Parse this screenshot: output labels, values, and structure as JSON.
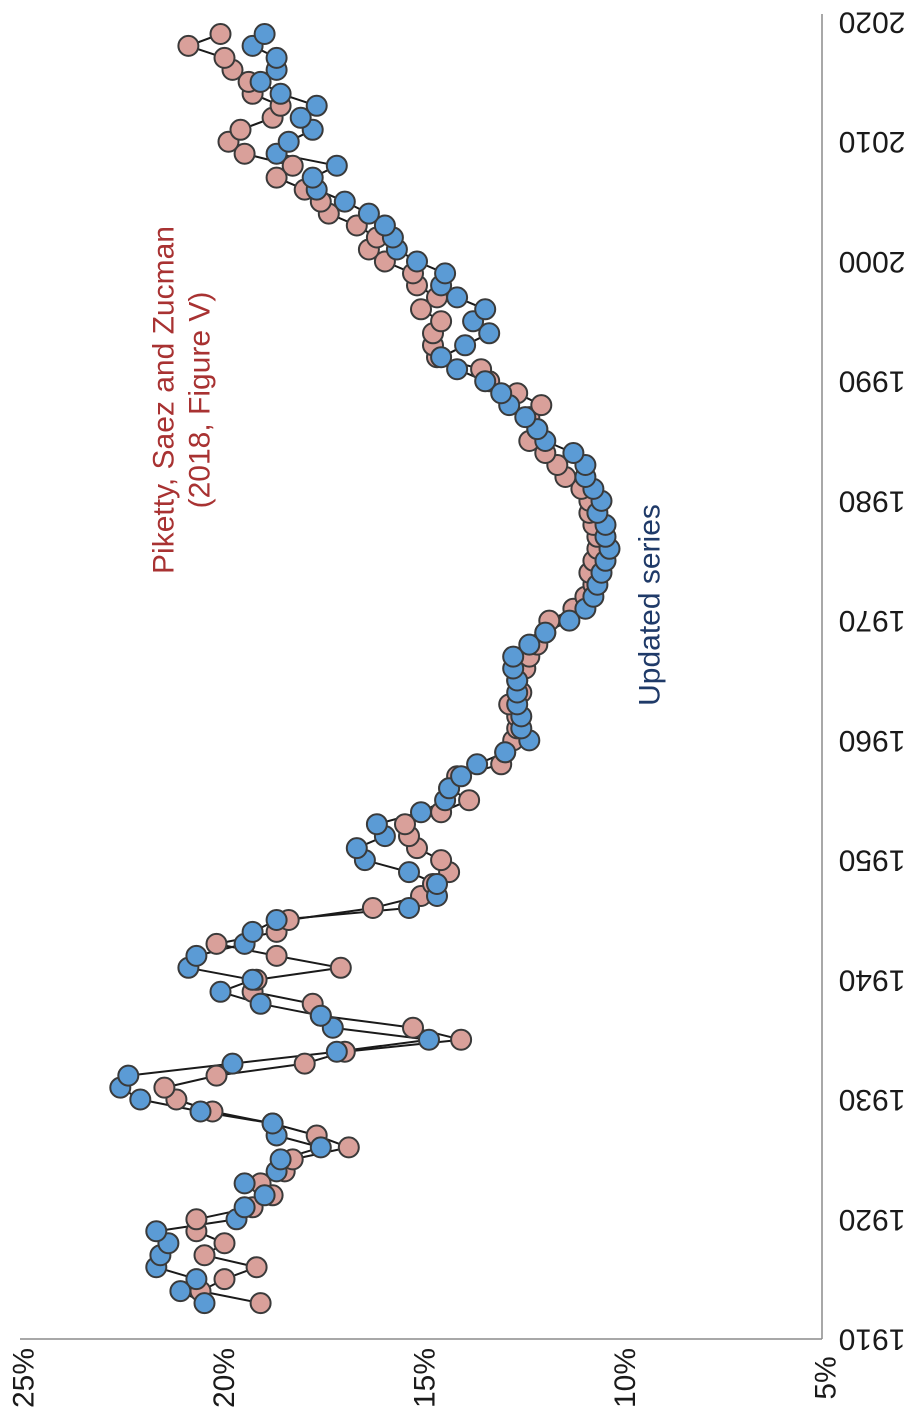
{
  "chart_data": {
    "type": "line",
    "title": "",
    "xlabel": "",
    "ylabel": "",
    "xlim": [
      1910,
      2020
    ],
    "ylim": [
      5,
      25
    ],
    "x_ticks": [
      "1910",
      "1920",
      "1930",
      "1940",
      "1950",
      "1960",
      "1970",
      "1980",
      "1990",
      "2000",
      "2010",
      "2020"
    ],
    "y_ticks": [
      "5%",
      "10%",
      "15%",
      "20%",
      "25%"
    ],
    "grid": false,
    "markers": true,
    "orientation": "rotated-90",
    "series": [
      {
        "name": "Piketty, Saez and Zucman (2018, Figure V)",
        "color": "#d9a09a",
        "x": [
          1913,
          1914,
          1915,
          1916,
          1917,
          1918,
          1919,
          1920,
          1921,
          1922,
          1923,
          1924,
          1925,
          1926,
          1927,
          1928,
          1929,
          1930,
          1931,
          1932,
          1933,
          1934,
          1935,
          1936,
          1937,
          1938,
          1939,
          1940,
          1941,
          1942,
          1943,
          1944,
          1945,
          1946,
          1947,
          1948,
          1949,
          1950,
          1951,
          1952,
          1953,
          1954,
          1955,
          1956,
          1957,
          1958,
          1959,
          1960,
          1961,
          1962,
          1963,
          1964,
          1965,
          1966,
          1967,
          1968,
          1969,
          1970,
          1971,
          1972,
          1973,
          1974,
          1975,
          1976,
          1977,
          1978,
          1979,
          1980,
          1981,
          1982,
          1983,
          1984,
          1985,
          1986,
          1987,
          1988,
          1989,
          1990,
          1991,
          1992,
          1993,
          1994,
          1995,
          1996,
          1997,
          1998,
          1999,
          2000,
          2001,
          2002,
          2003,
          2004,
          2005,
          2006,
          2007,
          2008,
          2009,
          2010,
          2011,
          2012,
          2013,
          2014,
          2015,
          2016,
          2017,
          2018,
          2019
        ],
        "values": [
          19.0,
          20.5,
          19.9,
          19.1,
          20.4,
          19.9,
          20.6,
          20.6,
          19.2,
          18.7,
          19.0,
          18.4,
          18.2,
          16.8,
          17.6,
          18.7,
          20.2,
          21.1,
          21.4,
          20.1,
          17.9,
          16.9,
          14.0,
          15.2,
          17.5,
          17.7,
          19.2,
          19.1,
          17.0,
          18.6,
          20.1,
          18.6,
          18.3,
          16.2,
          15.0,
          14.7,
          14.3,
          14.5,
          15.1,
          15.3,
          15.4,
          14.5,
          13.8,
          14.3,
          14.1,
          13.0,
          12.9,
          12.7,
          12.6,
          12.6,
          12.8,
          12.5,
          12.6,
          12.4,
          12.3,
          12.1,
          11.9,
          11.8,
          11.2,
          10.9,
          10.7,
          10.8,
          10.7,
          10.6,
          10.6,
          10.7,
          10.8,
          10.8,
          11.0,
          11.4,
          11.6,
          11.9,
          12.3,
          12.1,
          12.3,
          12.0,
          12.6,
          13.3,
          13.5,
          14.6,
          14.7,
          14.7,
          14.5,
          15.0,
          14.6,
          15.1,
          15.2,
          15.9,
          16.3,
          16.1,
          16.6,
          17.3,
          17.5,
          17.9,
          18.6,
          18.2,
          19.4,
          19.8,
          19.5,
          18.7,
          18.5,
          19.2,
          19.3,
          19.7,
          19.9,
          20.8,
          20.0
        ]
      },
      {
        "name": "Updated series",
        "color": "#5b9bd5",
        "x": [
          1913,
          1914,
          1915,
          1916,
          1917,
          1918,
          1919,
          1920,
          1921,
          1922,
          1923,
          1924,
          1925,
          1926,
          1927,
          1928,
          1929,
          1930,
          1931,
          1932,
          1933,
          1934,
          1935,
          1936,
          1937,
          1938,
          1939,
          1940,
          1941,
          1942,
          1943,
          1944,
          1945,
          1946,
          1947,
          1948,
          1949,
          1950,
          1951,
          1952,
          1953,
          1954,
          1955,
          1956,
          1957,
          1958,
          1959,
          1960,
          1961,
          1962,
          1963,
          1964,
          1965,
          1966,
          1967,
          1968,
          1969,
          1970,
          1971,
          1972,
          1973,
          1974,
          1975,
          1976,
          1977,
          1978,
          1979,
          1980,
          1981,
          1982,
          1983,
          1984,
          1985,
          1986,
          1987,
          1988,
          1989,
          1990,
          1991,
          1992,
          1993,
          1994,
          1995,
          1996,
          1997,
          1998,
          1999,
          2000,
          2001,
          2002,
          2003,
          2004,
          2005,
          2006,
          2007,
          2008,
          2009,
          2010,
          2011,
          2012,
          2013,
          2014,
          2015,
          2016,
          2017,
          2018,
          2019
        ],
        "values": [
          20.4,
          21.0,
          20.6,
          21.6,
          21.5,
          21.3,
          21.6,
          19.6,
          19.4,
          18.9,
          19.4,
          18.6,
          18.5,
          17.5,
          18.6,
          18.7,
          20.5,
          22.0,
          22.5,
          22.3,
          19.7,
          17.1,
          14.8,
          17.2,
          17.5,
          19.0,
          20.0,
          19.2,
          20.8,
          20.6,
          19.4,
          19.2,
          18.6,
          15.3,
          14.6,
          14.6,
          15.3,
          16.4,
          16.6,
          15.9,
          16.1,
          15.0,
          14.4,
          14.3,
          14.0,
          13.6,
          12.9,
          12.3,
          12.5,
          12.5,
          12.6,
          12.6,
          12.6,
          12.7,
          12.7,
          12.3,
          11.9,
          11.3,
          10.9,
          10.7,
          10.6,
          10.5,
          10.4,
          10.3,
          10.4,
          10.4,
          10.6,
          10.5,
          10.7,
          10.9,
          10.9,
          11.2,
          11.9,
          12.1,
          12.4,
          12.8,
          13.0,
          13.4,
          14.1,
          14.5,
          13.9,
          13.3,
          13.7,
          13.4,
          14.1,
          14.5,
          14.4,
          15.1,
          15.6,
          15.7,
          15.9,
          16.3,
          16.9,
          17.6,
          17.7,
          17.1,
          18.6,
          18.3,
          17.7,
          18.0,
          17.6,
          18.5,
          19.0,
          18.6,
          18.6,
          19.2,
          18.9
        ]
      }
    ],
    "annotations": [
      {
        "lines": [
          "Piketty, Saez and Zucman",
          "(2018, Figure V)"
        ],
        "color": "#a83232"
      },
      {
        "lines": [
          "Updated series"
        ],
        "color": "#1f3a68"
      }
    ]
  }
}
